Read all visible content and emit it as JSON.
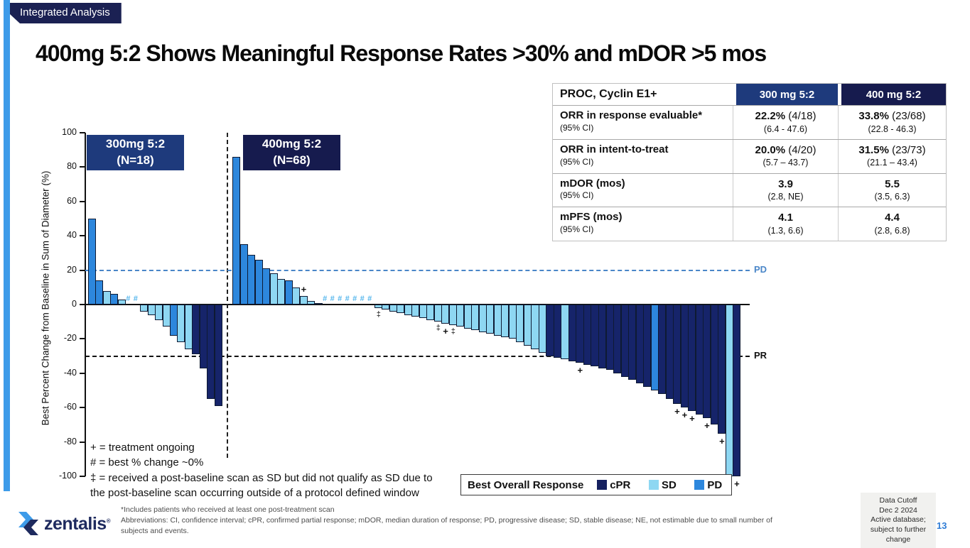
{
  "slide": {
    "badge": "Integrated Analysis",
    "title": "400mg 5:2 Shows Meaningful Response Rates >30% and mDOR >5 mos",
    "page_number": "13",
    "data_cutoff": "Data Cutoff\nDec 2 2024\nActive database;\nsubject to further\nchange",
    "logo_text": "zentalis"
  },
  "table": {
    "header": [
      "PROC, Cyclin E1+",
      "300 mg 5:2",
      "400 mg 5:2"
    ],
    "header_colors": [
      "#ffffff",
      "#1e3a7c",
      "#161b4e"
    ],
    "rows": [
      {
        "label": "ORR in response evaluable*",
        "sub": "(95% CI)",
        "c1": {
          "b": "22.2%",
          "r": " (4/18)",
          "ci": "(6.4 - 47.6)"
        },
        "c2": {
          "b": "33.8%",
          "r": " (23/68)",
          "ci": "(22.8 - 46.3)"
        }
      },
      {
        "label": "ORR in intent-to-treat",
        "sub": "(95% CI)",
        "c1": {
          "b": "20.0%",
          "r": " (4/20)",
          "ci": "(5.7 – 43.7)"
        },
        "c2": {
          "b": "31.5%",
          "r": " (23/73)",
          "ci": "(21.1 – 43.4)"
        }
      },
      {
        "label": "mDOR (mos)",
        "sub": "(95% CI)",
        "c1": {
          "b": "3.9",
          "r": "",
          "ci": "(2.8, NE)"
        },
        "c2": {
          "b": "5.5",
          "r": "",
          "ci": "(3.5, 6.3)"
        }
      },
      {
        "label": "mPFS (mos)",
        "sub": "(95% CI)",
        "c1": {
          "b": "4.1",
          "r": "",
          "ci": "(1.3, 6.6)"
        },
        "c2": {
          "b": "4.4",
          "r": "",
          "ci": "(2.8, 6.8)"
        }
      }
    ]
  },
  "chart_data": {
    "type": "bar",
    "subtype": "waterfall",
    "title": "Best percent change from baseline waterfall by cohort",
    "ylabel": "Best Percent Change from Baseline in Sum of Diameter (%)",
    "ylim": [
      -100,
      100
    ],
    "yticks": [
      100,
      80,
      60,
      40,
      20,
      0,
      -20,
      -40,
      -60,
      -80,
      -100
    ],
    "grid": false,
    "colors": {
      "cPR": "#16246a",
      "SD": "#8ed7f2",
      "PD": "#2d87dd"
    },
    "reference_lines": [
      {
        "value": 20,
        "label": "PD",
        "color": "#4a86c8"
      },
      {
        "value": -30,
        "label": "PR",
        "color": "#111111"
      }
    ],
    "marker_meanings": {
      "+": "treatment ongoing",
      "#": "best % change ~0%",
      "‡": "post-baseline scan outside protocol window"
    },
    "cohorts": [
      {
        "label": "300mg 5:2",
        "n_label": "(N=18)",
        "box_color": "#1e3a7c",
        "bars": [
          [
            50,
            "PD",
            ""
          ],
          [
            14,
            "PD",
            ""
          ],
          [
            8,
            "SD",
            ""
          ],
          [
            6,
            "PD",
            ""
          ],
          [
            3,
            "SD",
            ""
          ],
          [
            0,
            "SD",
            "#"
          ],
          [
            0,
            "SD",
            "#"
          ],
          [
            -4,
            "SD",
            ""
          ],
          [
            -6,
            "SD",
            ""
          ],
          [
            -9,
            "SD",
            ""
          ],
          [
            -13,
            "SD",
            ""
          ],
          [
            -18,
            "PD",
            ""
          ],
          [
            -22,
            "SD",
            ""
          ],
          [
            -26,
            "SD",
            ""
          ],
          [
            -29,
            "cPR",
            ""
          ],
          [
            -37,
            "cPR",
            ""
          ],
          [
            -55,
            "cPR",
            ""
          ],
          [
            -59,
            "cPR",
            ""
          ]
        ]
      },
      {
        "label": "400mg 5:2",
        "n_label": "(N=68)",
        "box_color": "#161b4e",
        "bars": [
          [
            86,
            "PD",
            ""
          ],
          [
            35,
            "PD",
            ""
          ],
          [
            29,
            "PD",
            ""
          ],
          [
            26,
            "PD",
            ""
          ],
          [
            21,
            "PD",
            ""
          ],
          [
            18,
            "SD",
            ""
          ],
          [
            15,
            "SD",
            ""
          ],
          [
            14,
            "PD",
            ""
          ],
          [
            10,
            "SD",
            ""
          ],
          [
            5,
            "SD",
            "+"
          ],
          [
            2,
            "SD",
            ""
          ],
          [
            1,
            "SD",
            ""
          ],
          [
            0,
            "SD",
            "#"
          ],
          [
            0,
            "SD",
            "#"
          ],
          [
            0,
            "SD",
            "#"
          ],
          [
            0,
            "SD",
            "#"
          ],
          [
            0,
            "SD",
            "#"
          ],
          [
            0,
            "SD",
            "#"
          ],
          [
            0,
            "SD",
            "#"
          ],
          [
            -2,
            "SD",
            "‡"
          ],
          [
            -3,
            "SD",
            ""
          ],
          [
            -4,
            "SD",
            ""
          ],
          [
            -5,
            "SD",
            ""
          ],
          [
            -6,
            "SD",
            ""
          ],
          [
            -7,
            "SD",
            ""
          ],
          [
            -8,
            "SD",
            ""
          ],
          [
            -9,
            "SD",
            ""
          ],
          [
            -10,
            "SD",
            "‡"
          ],
          [
            -11,
            "SD",
            "+"
          ],
          [
            -12,
            "SD",
            "‡"
          ],
          [
            -13,
            "SD",
            ""
          ],
          [
            -14,
            "SD",
            ""
          ],
          [
            -15,
            "SD",
            ""
          ],
          [
            -16,
            "SD",
            ""
          ],
          [
            -17,
            "SD",
            ""
          ],
          [
            -18,
            "SD",
            ""
          ],
          [
            -19,
            "SD",
            ""
          ],
          [
            -20,
            "SD",
            ""
          ],
          [
            -22,
            "SD",
            ""
          ],
          [
            -24,
            "SD",
            ""
          ],
          [
            -26,
            "SD",
            ""
          ],
          [
            -28,
            "SD",
            ""
          ],
          [
            -30,
            "cPR",
            ""
          ],
          [
            -31,
            "cPR",
            ""
          ],
          [
            -32,
            "SD",
            ""
          ],
          [
            -33,
            "cPR",
            ""
          ],
          [
            -34,
            "cPR",
            "+"
          ],
          [
            -35,
            "cPR",
            ""
          ],
          [
            -36,
            "cPR",
            ""
          ],
          [
            -37,
            "cPR",
            ""
          ],
          [
            -38,
            "cPR",
            ""
          ],
          [
            -40,
            "cPR",
            ""
          ],
          [
            -42,
            "cPR",
            ""
          ],
          [
            -44,
            "cPR",
            ""
          ],
          [
            -46,
            "cPR",
            ""
          ],
          [
            -48,
            "cPR",
            ""
          ],
          [
            -50,
            "PD",
            ""
          ],
          [
            -52,
            "cPR",
            ""
          ],
          [
            -55,
            "cPR",
            ""
          ],
          [
            -58,
            "cPR",
            "+"
          ],
          [
            -60,
            "cPR",
            "+"
          ],
          [
            -62,
            "cPR",
            "+"
          ],
          [
            -64,
            "cPR",
            ""
          ],
          [
            -66,
            "cPR",
            "+"
          ],
          [
            -70,
            "cPR",
            ""
          ],
          [
            -75,
            "cPR",
            "+"
          ],
          [
            -100,
            "SD",
            ""
          ],
          [
            -100,
            "cPR",
            "+"
          ]
        ]
      }
    ],
    "legend": {
      "title": "Best Overall Response",
      "position": "bottom",
      "items": [
        {
          "label": "cPR",
          "color": "#15205f"
        },
        {
          "label": "SD",
          "color": "#8ed7f2"
        },
        {
          "label": "PD",
          "color": "#2d87dd"
        }
      ]
    }
  },
  "chart_notes": [
    "+ = treatment ongoing",
    "# = best % change ~0%",
    "‡ = received a post-baseline scan as SD but did not qualify as SD due to",
    "the post-baseline scan occurring outside of a protocol defined window"
  ],
  "footnotes": [
    "*Includes patients who received at least one post-treatment scan",
    "Abbreviations: CI, confidence interval; cPR, confirmed partial response; mDOR, median duration of response; PD, progressive disease; SD, stable disease; NE, not estimable due to small number of subjects and events."
  ]
}
